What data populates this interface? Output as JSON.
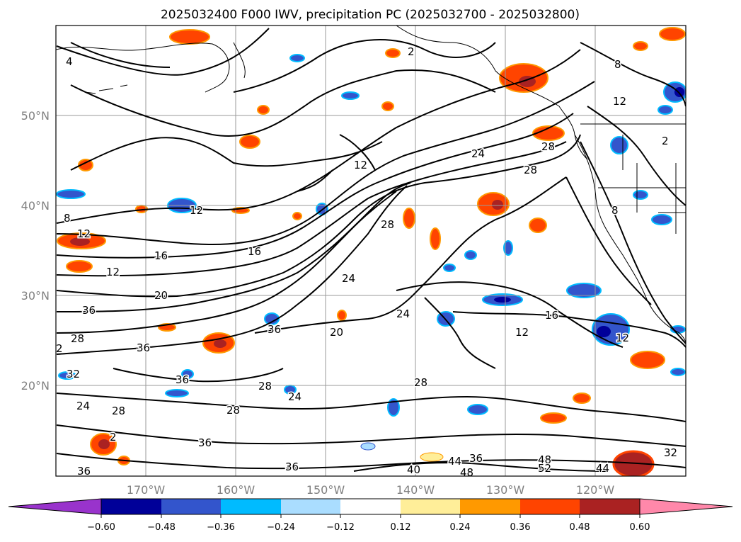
{
  "title": "2025032400 F000 IWV, precipitation PC (2025032700 - 2025032800)",
  "lat_labels": [
    "50°N",
    "40°N",
    "30°N",
    "20°N"
  ],
  "lon_labels": [
    "170°W",
    "160°W",
    "150°W",
    "140°W",
    "130°W",
    "120°W"
  ],
  "colorbar": {
    "ticks": [
      "−0.60",
      "−0.48",
      "−0.36",
      "−0.24",
      "−0.12",
      "0.12",
      "0.24",
      "0.36",
      "0.48",
      "0.60"
    ],
    "colors": [
      "#9933cc",
      "#000099",
      "#3355cc",
      "#00bbff",
      "#aaddff",
      "#ffffff",
      "#ffee99",
      "#ff9900",
      "#ff4400",
      "#aa2222",
      "#ff88aa"
    ]
  },
  "contour_labels": [
    "4",
    "2",
    "8",
    "12",
    "12",
    "12",
    "8",
    "12",
    "16",
    "16",
    "12",
    "20",
    "20",
    "24",
    "28",
    "28",
    "28",
    "28",
    "24",
    "24",
    "36",
    "36",
    "36",
    "36",
    "28",
    "32",
    "2",
    "36",
    "12",
    "16",
    "12",
    "8",
    "28",
    "24",
    "28",
    "2",
    "28",
    "24",
    "36",
    "36",
    "36",
    "40",
    "44",
    "48",
    "48",
    "52",
    "44",
    "32",
    "2"
  ]
}
